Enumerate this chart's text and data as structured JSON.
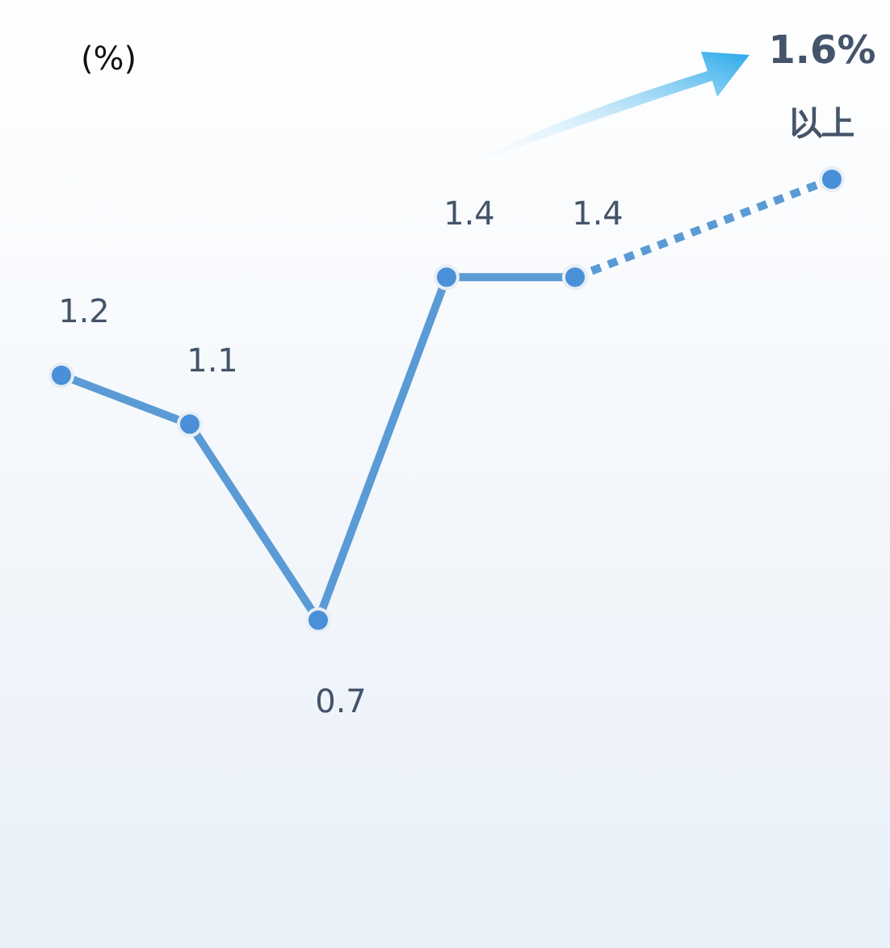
{
  "chart_data": {
    "type": "line",
    "ylabel": "(%)",
    "categories": [
      null,
      null,
      null,
      null,
      null,
      null,
      null
    ],
    "tick_labels": false,
    "grid": false,
    "legend": false,
    "marker": "circle",
    "annotations": [
      "以上"
    ],
    "series": [
      {
        "color": "#5b9bd5",
        "line_style": "solid",
        "values": [
          1.2,
          1.1,
          0.7,
          1.4,
          1.4,
          null,
          null
        ],
        "value_labels": [
          "1.2",
          "1.1",
          "0.7",
          "1.4",
          "1.4",
          null,
          null
        ]
      },
      {
        "color": "#5b9bd5",
        "line_style": "dotted",
        "values": [
          null,
          null,
          null,
          null,
          1.4,
          null,
          1.6
        ],
        "value_labels": [
          null,
          null,
          null,
          null,
          null,
          null,
          "1.6%"
        ]
      }
    ]
  }
}
